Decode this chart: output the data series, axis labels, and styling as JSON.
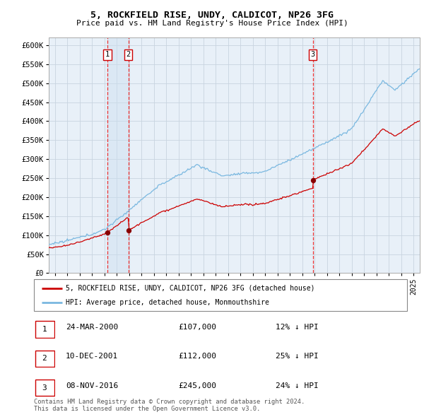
{
  "title": "5, ROCKFIELD RISE, UNDY, CALDICOT, NP26 3FG",
  "subtitle": "Price paid vs. HM Land Registry's House Price Index (HPI)",
  "ylim": [
    0,
    620000
  ],
  "yticks": [
    0,
    50000,
    100000,
    150000,
    200000,
    250000,
    300000,
    350000,
    400000,
    450000,
    500000,
    550000,
    600000
  ],
  "ytick_labels": [
    "£0",
    "£50K",
    "£100K",
    "£150K",
    "£200K",
    "£250K",
    "£300K",
    "£350K",
    "£400K",
    "£450K",
    "£500K",
    "£550K",
    "£600K"
  ],
  "hpi_color": "#7ab8e0",
  "price_color": "#cc0000",
  "dot_color": "#880000",
  "background_color": "#ffffff",
  "chart_bg_color": "#e8f0f8",
  "grid_color": "#c8d4e0",
  "sale_year_vals": [
    2000.23,
    2001.94,
    2016.85
  ],
  "sale_prices": [
    107000,
    112000,
    245000
  ],
  "sale_labels": [
    "1",
    "2",
    "3"
  ],
  "legend_label_price": "5, ROCKFIELD RISE, UNDY, CALDICOT, NP26 3FG (detached house)",
  "legend_label_hpi": "HPI: Average price, detached house, Monmouthshire",
  "table_entries": [
    {
      "label": "1",
      "date": "24-MAR-2000",
      "price": "£107,000",
      "hpi": "12% ↓ HPI"
    },
    {
      "label": "2",
      "date": "10-DEC-2001",
      "price": "£112,000",
      "hpi": "25% ↓ HPI"
    },
    {
      "label": "3",
      "date": "08-NOV-2016",
      "price": "£245,000",
      "hpi": "24% ↓ HPI"
    }
  ],
  "footer": "Contains HM Land Registry data © Crown copyright and database right 2024.\nThis data is licensed under the Open Government Licence v3.0.",
  "vline_color": "#ee3333",
  "vspan_color": "#cce0f0",
  "xlim_start": 1995.5,
  "xlim_end": 2025.5
}
